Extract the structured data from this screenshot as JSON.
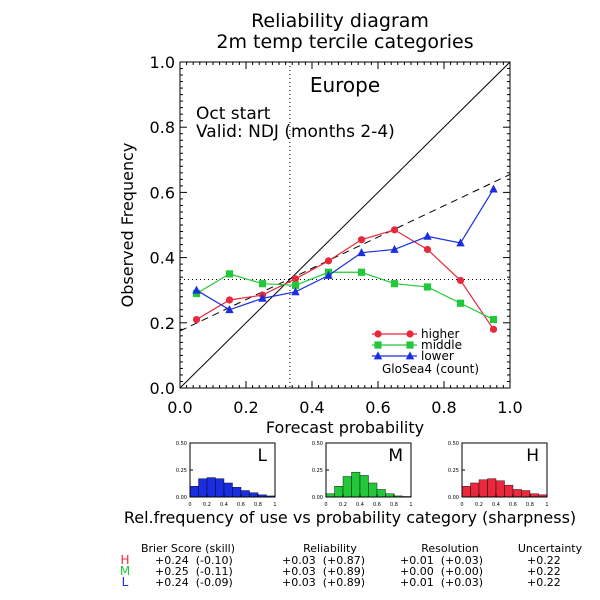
{
  "header": {
    "title_line1": "Reliability diagram",
    "title_line2": "2m temp tercile categories"
  },
  "chart_data": {
    "type": "line",
    "region": "Europe",
    "annotation_line1": "Oct start",
    "annotation_line2": "Valid: NDJ (months 2-4)",
    "xlabel": "Forecast probability",
    "ylabel": "Observed Frequency",
    "xlim": [
      0,
      1
    ],
    "ylim": [
      0,
      1
    ],
    "x_ticks": [
      "0.0",
      "0.2",
      "0.4",
      "0.6",
      "0.8",
      "1.0"
    ],
    "y_ticks": [
      "0.0",
      "0.2",
      "0.4",
      "0.6",
      "0.8",
      "1.0"
    ],
    "climatology": 0.333,
    "series": [
      {
        "name": "higher",
        "color": "#e8283c",
        "marker": "circle",
        "x": [
          0.05,
          0.15,
          0.25,
          0.35,
          0.45,
          0.55,
          0.65,
          0.75,
          0.85,
          0.95
        ],
        "y": [
          0.21,
          0.27,
          0.285,
          0.335,
          0.39,
          0.455,
          0.485,
          0.425,
          0.33,
          0.18
        ]
      },
      {
        "name": "middle",
        "color": "#22c83a",
        "marker": "square",
        "x": [
          0.05,
          0.15,
          0.25,
          0.35,
          0.45,
          0.55,
          0.65,
          0.75,
          0.85,
          0.95
        ],
        "y": [
          0.29,
          0.35,
          0.32,
          0.315,
          0.355,
          0.355,
          0.32,
          0.31,
          0.26,
          0.21
        ]
      },
      {
        "name": "lower",
        "color": "#1a2ee0",
        "marker": "triangle",
        "x": [
          0.05,
          0.15,
          0.25,
          0.35,
          0.45,
          0.55,
          0.65,
          0.75,
          0.85,
          0.95
        ],
        "y": [
          0.3,
          0.24,
          0.275,
          0.295,
          0.345,
          0.415,
          0.425,
          0.465,
          0.445,
          0.61
        ]
      }
    ],
    "regression_line": {
      "x": [
        0,
        1
      ],
      "y": [
        0.175,
        0.655
      ]
    },
    "model_label": "GloSea4 (count)"
  },
  "sharpness": {
    "caption": "Rel.frequency of use vs probability category (sharpness)",
    "y_ticks": [
      "0.00",
      "0.25",
      "0.50"
    ],
    "x_ticks": [
      "0",
      "0.2",
      "0.4",
      "0.6",
      "0.8",
      "1"
    ],
    "ylim": [
      0,
      0.5
    ],
    "panels": [
      {
        "label": "L",
        "color": "#1a2ee0",
        "values": [
          0.1,
          0.17,
          0.18,
          0.17,
          0.13,
          0.09,
          0.06,
          0.04,
          0.02,
          0.01
        ]
      },
      {
        "label": "M",
        "color": "#22c83a",
        "values": [
          0.03,
          0.1,
          0.19,
          0.23,
          0.2,
          0.13,
          0.07,
          0.03,
          0.01,
          0.005
        ]
      },
      {
        "label": "H",
        "color": "#e8283c",
        "values": [
          0.1,
          0.13,
          0.16,
          0.17,
          0.15,
          0.11,
          0.07,
          0.06,
          0.03,
          0.02
        ]
      }
    ]
  },
  "scores": {
    "headers": [
      "Brier Score (skill)",
      "Reliability",
      "Resolution",
      "Uncertainty"
    ],
    "rows": [
      {
        "label": "H",
        "color": "#e8283c",
        "brier": "+0.24  (-0.10)",
        "reliability": "+0.03  (+0.87)",
        "resolution": "+0.01  (+0.03)",
        "uncertainty": "+0.22"
      },
      {
        "label": "M",
        "color": "#22c83a",
        "brier": "+0.25  (-0.11)",
        "reliability": "+0.03  (+0.89)",
        "resolution": "+0.00  (+0.00)",
        "uncertainty": "+0.22"
      },
      {
        "label": "L",
        "color": "#1a2ee0",
        "brier": "+0.24  (-0.09)",
        "reliability": "+0.03  (+0.89)",
        "resolution": "+0.01  (+0.03)",
        "uncertainty": "+0.22"
      }
    ]
  }
}
